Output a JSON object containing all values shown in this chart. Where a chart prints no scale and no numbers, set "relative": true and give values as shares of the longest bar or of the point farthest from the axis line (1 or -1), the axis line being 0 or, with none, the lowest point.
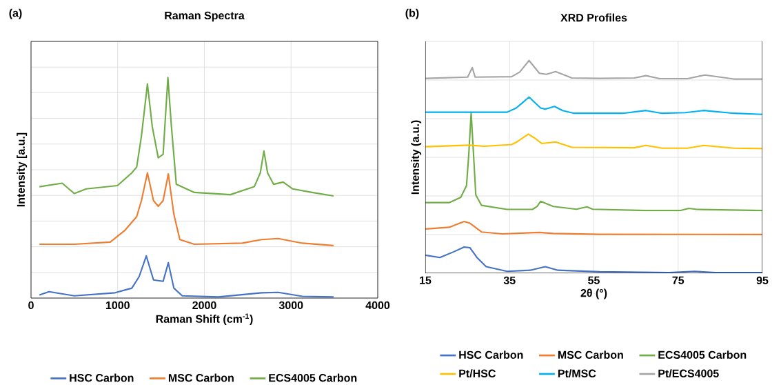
{
  "chart_data": [
    {
      "type": "line",
      "title": "Raman Spectra",
      "xlabel": "Raman Shift (cm$^{-1}$)",
      "ylabel": "Intensity [a.u.]",
      "relative": true,
      "xlim": [
        0,
        4000
      ],
      "xticks": [
        0,
        1000,
        2000,
        3000,
        4000
      ],
      "grid": true,
      "legend": "bottom",
      "marker": "none",
      "annotations": [
        "(a)"
      ],
      "series": [
        {
          "name": "HSC Carbon",
          "color": "#4472c4",
          "x": [
            97,
            208,
            499,
            970,
            1163,
            1247,
            1330,
            1413,
            1524,
            1584,
            1648,
            1745,
            2161,
            2659,
            2853,
            3130,
            3490
          ],
          "values": [
            0.014,
            0.029,
            0.01,
            0.024,
            0.045,
            0.097,
            0.191,
            0.082,
            0.076,
            0.16,
            0.045,
            0.01,
            0.005,
            0.024,
            0.026,
            0.008,
            0.005
          ]
        },
        {
          "name": "MSC Carbon",
          "color": "#ed7d31",
          "x": [
            97,
            499,
            914,
            1080,
            1219,
            1274,
            1343,
            1413,
            1468,
            1524,
            1584,
            1648,
            1717,
            1884,
            2438,
            2659,
            2853,
            3130,
            3490
          ],
          "values": [
            0.244,
            0.244,
            0.254,
            0.306,
            0.369,
            0.442,
            0.568,
            0.442,
            0.416,
            0.442,
            0.563,
            0.38,
            0.265,
            0.244,
            0.249,
            0.265,
            0.27,
            0.249,
            0.238
          ]
        },
        {
          "name": "ECS4005 Carbon",
          "color": "#70ad47",
          "x": [
            97,
            360,
            499,
            637,
            997,
            1163,
            1219,
            1274,
            1343,
            1399,
            1468,
            1524,
            1579,
            1620,
            1676,
            1884,
            2299,
            2576,
            2645,
            2687,
            2729,
            2798,
            2909,
            3019,
            3241,
            3490
          ],
          "values": [
            0.505,
            0.521,
            0.474,
            0.495,
            0.51,
            0.568,
            0.594,
            0.735,
            0.971,
            0.777,
            0.636,
            0.652,
            1.0,
            0.777,
            0.516,
            0.479,
            0.469,
            0.505,
            0.568,
            0.667,
            0.568,
            0.516,
            0.526,
            0.495,
            0.479,
            0.463
          ]
        }
      ]
    },
    {
      "type": "line",
      "title": "XRD Profiles",
      "xlabel": "2θ (°)",
      "ylabel": "Intensity (a.u.)",
      "relative": true,
      "xlim": [
        15,
        95
      ],
      "xticks": [
        15,
        35,
        55,
        75,
        95
      ],
      "grid": true,
      "legend": "bottom",
      "marker": "none",
      "annotations": [
        "(b)"
      ],
      "series": [
        {
          "name": "HSC Carbon",
          "color": "#4472c4",
          "x": [
            15,
            18.46,
            21.76,
            24.23,
            25.6,
            27.25,
            29.45,
            34.4,
            39.89,
            43.46,
            46.48,
            56.37,
            72.86,
            78.9,
            83.85,
            95
          ],
          "values": [
            0.085,
            0.074,
            0.101,
            0.123,
            0.12,
            0.074,
            0.031,
            0.009,
            0.014,
            0.031,
            0.014,
            0.007,
            0.003,
            0.009,
            0.003,
            0.003
          ]
        },
        {
          "name": "MSC Carbon",
          "color": "#ed7d31",
          "x": [
            15,
            20.66,
            24.23,
            25.6,
            28.35,
            33.3,
            42.09,
            45.38,
            56.37,
            95
          ],
          "values": [
            0.208,
            0.216,
            0.243,
            0.235,
            0.194,
            0.185,
            0.192,
            0.187,
            0.183,
            0.182
          ]
        },
        {
          "name": "ECS4005 Carbon",
          "color": "#70ad47",
          "x": [
            15,
            20.66,
            23.41,
            24.78,
            25.33,
            25.88,
            26.43,
            26.98,
            28.35,
            34.4,
            40.44,
            41.54,
            42.36,
            45.38,
            50.88,
            53.35,
            54.73,
            67.36,
            75.6,
            77.53,
            79.45,
            95
          ],
          "values": [
            0.332,
            0.332,
            0.357,
            0.412,
            0.564,
            0.755,
            0.564,
            0.368,
            0.319,
            0.3,
            0.3,
            0.314,
            0.338,
            0.314,
            0.301,
            0.312,
            0.301,
            0.295,
            0.295,
            0.305,
            0.3,
            0.295
          ]
        },
        {
          "name": "Pt/HSC",
          "color": "#ffc000",
          "x": [
            15,
            25.6,
            28.9,
            35.49,
            36.87,
            39.45,
            40.99,
            42.64,
            45.93,
            49.78,
            64.62,
            67.36,
            71.21,
            77.25,
            81.1,
            88.24,
            95
          ],
          "values": [
            0.595,
            0.602,
            0.597,
            0.605,
            0.619,
            0.654,
            0.635,
            0.61,
            0.617,
            0.592,
            0.59,
            0.601,
            0.588,
            0.588,
            0.601,
            0.588,
            0.586
          ]
        },
        {
          "name": "Pt/MSC",
          "color": "#00b0f0",
          "x": [
            15,
            34.4,
            36.59,
            39.62,
            42.36,
            43.46,
            45.66,
            47.58,
            50.33,
            61.87,
            67.36,
            71.21,
            76.7,
            81.1,
            88.24,
            95
          ],
          "values": [
            0.757,
            0.757,
            0.777,
            0.828,
            0.777,
            0.771,
            0.784,
            0.765,
            0.752,
            0.752,
            0.765,
            0.752,
            0.755,
            0.765,
            0.752,
            0.747
          ]
        },
        {
          "name": "Pt/ECS4005",
          "color": "#a5a5a5",
          "x": [
            15,
            25.05,
            26.15,
            26.81,
            35.49,
            37.42,
            39.62,
            42.09,
            43.74,
            45.93,
            49.78,
            56.37,
            64.62,
            67.36,
            70.66,
            77.25,
            81.37,
            88.24,
            95
          ],
          "values": [
            0.916,
            0.922,
            0.967,
            0.922,
            0.924,
            0.946,
            1.0,
            0.94,
            0.935,
            0.948,
            0.918,
            0.916,
            0.918,
            0.929,
            0.915,
            0.915,
            0.932,
            0.913,
            0.913
          ]
        }
      ]
    }
  ]
}
